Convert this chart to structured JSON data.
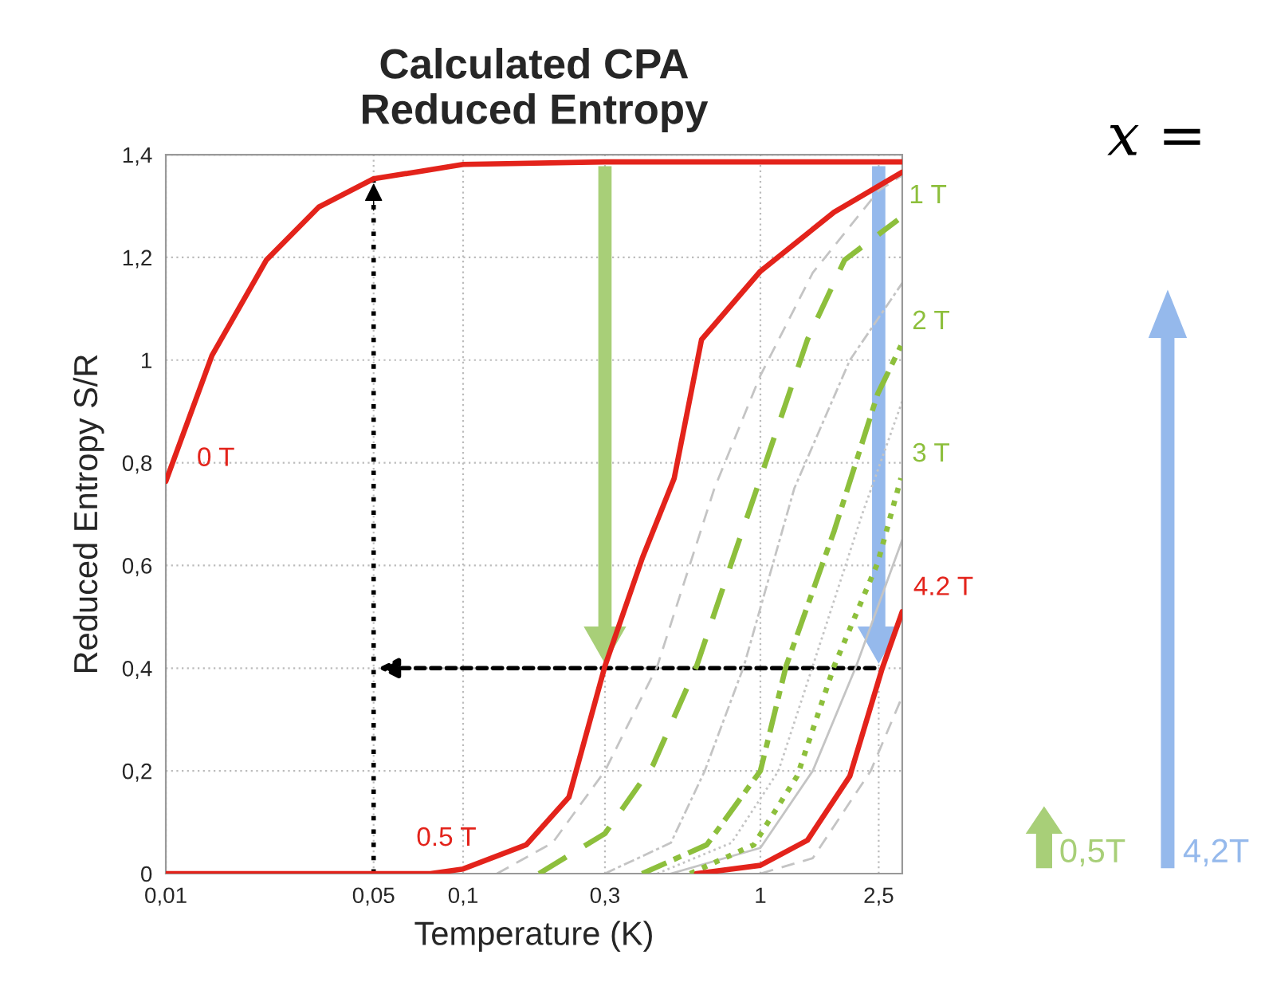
{
  "chart_data": {
    "type": "line",
    "title": "Calculated CPA\nReduced Entropy",
    "xlabel": "Temperature (K)",
    "ylabel": "Reduced Entropy S/R",
    "log": "x",
    "grid": true,
    "xlim": [
      0.01,
      3
    ],
    "ylim": [
      0,
      1.4
    ],
    "xticks": [
      {
        "value": 0.01,
        "label": "0,01"
      },
      {
        "value": 0.05,
        "label": "0,05"
      },
      {
        "value": 0.1,
        "label": "0,1"
      },
      {
        "value": 0.3,
        "label": "0,3"
      },
      1,
      {
        "value": 2.5,
        "label": "2,5"
      }
    ],
    "yticks": [
      0,
      {
        "value": 0.2,
        "label": "0,2"
      },
      {
        "value": 0.4,
        "label": "0,4"
      },
      {
        "value": 0.6,
        "label": "0,6"
      },
      {
        "value": 0.8,
        "label": "0,8"
      },
      1,
      {
        "value": 1.2,
        "label": "1,2"
      },
      {
        "value": 1.4,
        "label": "1,4"
      }
    ],
    "series": [
      {
        "name": "0 T",
        "color": "#e3231b",
        "line_style": "solid",
        "x": [
          0.01,
          0.0143,
          0.0218,
          0.0327,
          0.05,
          0.1,
          0.3,
          1,
          3
        ],
        "values": [
          0.764,
          1.009,
          1.195,
          1.298,
          1.353,
          1.381,
          1.386,
          1.386,
          1.386
        ]
      },
      {
        "color": "#c4c4c4",
        "line_style": "dashed",
        "x": [
          0.13,
          0.2,
          0.3,
          0.45,
          0.7,
          1,
          1.5,
          2.5,
          3
        ],
        "values": [
          0,
          0.06,
          0.2,
          0.404,
          0.75,
          0.97,
          1.17,
          1.33,
          1.36
        ]
      },
      {
        "color": "#c4c4c4",
        "line_style": "dashdot",
        "x": [
          0.3,
          0.5,
          0.65,
          0.88,
          1.3,
          2,
          3
        ],
        "values": [
          0,
          0.06,
          0.2,
          0.404,
          0.75,
          1.0,
          1.15
        ]
      },
      {
        "color": "#c4c4c4",
        "line_style": "dotted",
        "x": [
          0.45,
          0.8,
          1.15,
          1.5,
          2.2,
          3
        ],
        "values": [
          0,
          0.06,
          0.2,
          0.404,
          0.7,
          0.92
        ]
      },
      {
        "color": "#c4c4c4",
        "line_style": "solid",
        "x": [
          0.5,
          1,
          1.5,
          2.1,
          3
        ],
        "values": [
          0,
          0.05,
          0.2,
          0.404,
          0.65
        ]
      },
      {
        "color": "#c4c4c4",
        "line_style": "dashed",
        "x": [
          1,
          1.5,
          2.35,
          3
        ],
        "values": [
          0,
          0.03,
          0.2,
          0.345
        ]
      },
      {
        "name": "0.5 T",
        "color": "#e3231b",
        "line_style": "solid",
        "x": [
          0.01,
          0.0777,
          0.1,
          0.163,
          0.227,
          0.3,
          0.401,
          0.513,
          0.634,
          1,
          1.77,
          3
        ],
        "values": [
          0,
          0,
          0.009,
          0.056,
          0.149,
          0.404,
          0.615,
          0.77,
          1.04,
          1.173,
          1.288,
          1.366
        ]
      },
      {
        "name": "1 T",
        "color": "#8dbf3c",
        "line_style": "dashed",
        "x": [
          0.18,
          0.3,
          0.435,
          0.61,
          0.81,
          1,
          1.44,
          1.92,
          2.9
        ],
        "values": [
          0,
          0.078,
          0.211,
          0.404,
          0.615,
          0.77,
          1.04,
          1.195,
          1.273
        ]
      },
      {
        "name": "2 T",
        "color": "#8dbf3c",
        "line_style": "dashdot",
        "x": [
          0.4,
          0.66,
          1,
          1.22,
          1.77,
          2.48,
          2.97
        ],
        "values": [
          0,
          0.056,
          0.2,
          0.404,
          0.667,
          0.934,
          1.028
        ]
      },
      {
        "name": "3 T",
        "color": "#8dbf3c",
        "line_style": "dotted",
        "x": [
          0.58,
          0.95,
          1.33,
          1.77,
          2.48,
          2.97
        ],
        "values": [
          0,
          0.056,
          0.19,
          0.404,
          0.605,
          0.77
        ]
      },
      {
        "name": "4.2 T",
        "color": "#e3231b",
        "line_style": "solid",
        "x": [
          0.61,
          1,
          1.44,
          2.0,
          2.57,
          3
        ],
        "values": [
          0,
          0.016,
          0.065,
          0.19,
          0.4,
          0.51
        ]
      }
    ],
    "ref_lines": [
      {
        "axis": "x",
        "value": 0.05,
        "color": "#000000",
        "line_style": "dotted"
      }
    ],
    "annotations": [
      "x =",
      "0,5T",
      "4,2T"
    ]
  }
}
